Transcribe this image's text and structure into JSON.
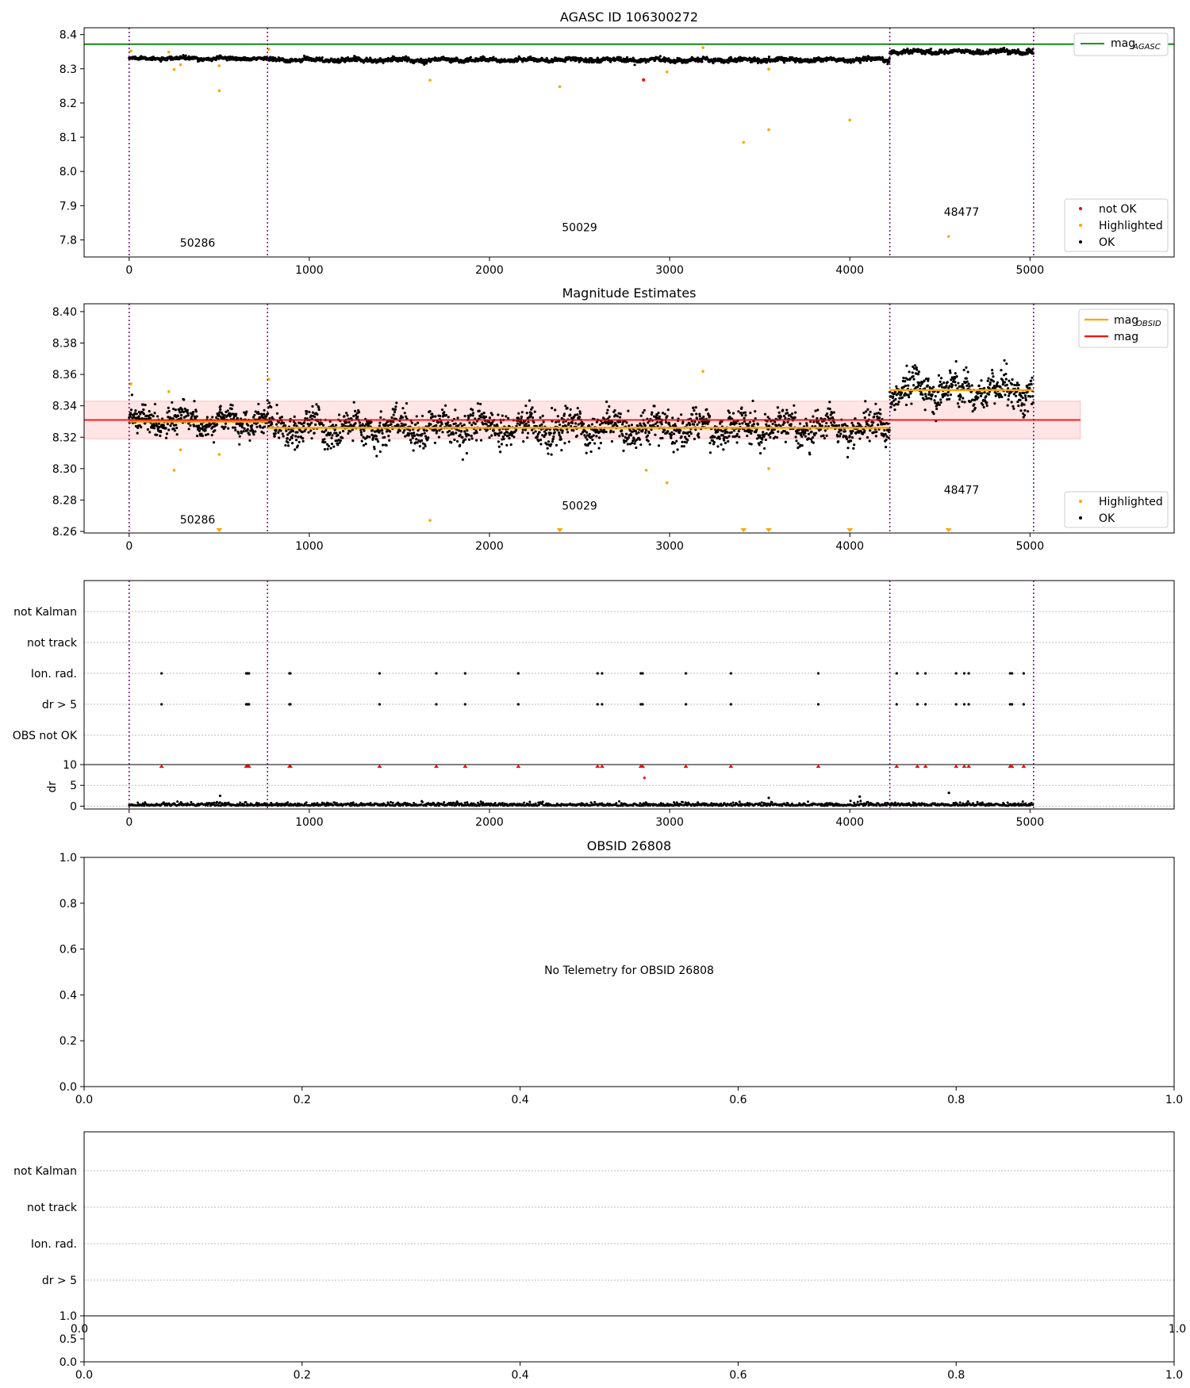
{
  "chart_data": [
    {
      "type": "scatter",
      "title": "AGASC ID 106300272",
      "xlim": [
        -250,
        5800
      ],
      "ylim": [
        7.75,
        8.42
      ],
      "xticks": [
        0,
        1000,
        2000,
        3000,
        4000,
        5000
      ],
      "yticks": [
        7.8,
        7.9,
        8.0,
        8.1,
        8.2,
        8.3,
        8.4
      ],
      "ytick_labels": [
        "7.8",
        "7.9",
        "8.0",
        "8.1",
        "8.2",
        "8.3",
        "8.4"
      ],
      "grid": false,
      "mag_agasc": 8.372,
      "obsid_boundaries": [
        0,
        768,
        4222,
        5020
      ],
      "obsid_labels": [
        {
          "text": "50286",
          "x": 380,
          "y": 7.78
        },
        {
          "text": "50029",
          "x": 2500,
          "y": 7.825
        },
        {
          "text": "48477",
          "x": 4620,
          "y": 7.87
        }
      ],
      "segments": [
        {
          "x0": 0,
          "x1": 768,
          "center": 8.33,
          "noise": 0.007
        },
        {
          "x0": 768,
          "x1": 4222,
          "center": 8.326,
          "noise": 0.009
        },
        {
          "x0": 4222,
          "x1": 5020,
          "center": 8.35,
          "noise": 0.009
        }
      ],
      "highlighted": [
        {
          "x": 10,
          "y": 8.352
        },
        {
          "x": 220,
          "y": 8.349
        },
        {
          "x": 250,
          "y": 8.298
        },
        {
          "x": 285,
          "y": 8.312
        },
        {
          "x": 500,
          "y": 8.236
        },
        {
          "x": 500,
          "y": 8.309
        },
        {
          "x": 775,
          "y": 8.357
        },
        {
          "x": 1670,
          "y": 8.267
        },
        {
          "x": 2390,
          "y": 8.248
        },
        {
          "x": 2985,
          "y": 8.291
        },
        {
          "x": 3185,
          "y": 8.362
        },
        {
          "x": 3410,
          "y": 8.085
        },
        {
          "x": 3550,
          "y": 8.122
        },
        {
          "x": 3550,
          "y": 8.299
        },
        {
          "x": 4000,
          "y": 8.15
        },
        {
          "x": 4548,
          "y": 7.81
        }
      ],
      "not_ok": [
        {
          "x": 2855,
          "y": 8.268
        }
      ],
      "legend_lines": [
        {
          "label": "mag",
          "sub": "AGASC",
          "color": "#008000"
        }
      ],
      "legend_points": [
        {
          "label": "not OK",
          "color": "#ff0000"
        },
        {
          "label": "Highlighted",
          "color": "#ffa500"
        },
        {
          "label": "OK",
          "color": "#000000"
        }
      ],
      "legend_placement": [
        "upper right",
        "lower right"
      ]
    },
    {
      "type": "scatter",
      "title": "Magnitude Estimates",
      "xlim": [
        -250,
        5800
      ],
      "ylim": [
        8.259,
        8.405
      ],
      "xticks": [
        0,
        1000,
        2000,
        3000,
        4000,
        5000
      ],
      "yticks": [
        8.26,
        8.28,
        8.3,
        8.32,
        8.34,
        8.36,
        8.38,
        8.4
      ],
      "ytick_labels": [
        "8.26",
        "8.28",
        "8.30",
        "8.32",
        "8.34",
        "8.36",
        "8.38",
        "8.40"
      ],
      "grid": false,
      "mag": 8.331,
      "mag_band": [
        8.319,
        8.343
      ],
      "mag_band_xrange": [
        -250,
        5280
      ],
      "mag_obsid": [
        {
          "x0": 0,
          "x1": 768,
          "value": 8.33
        },
        {
          "x0": 768,
          "x1": 4222,
          "value": 8.326
        },
        {
          "x0": 4222,
          "x1": 5020,
          "value": 8.35
        }
      ],
      "obsid_boundaries": [
        0,
        768,
        4222,
        5020
      ],
      "obsid_labels": [
        {
          "text": "50286",
          "x": 380,
          "y": 8.265
        },
        {
          "text": "50029",
          "x": 2500,
          "y": 8.274
        },
        {
          "text": "48477",
          "x": 4620,
          "y": 8.284
        }
      ],
      "highlighted": [
        {
          "x": 10,
          "y": 8.354
        },
        {
          "x": 220,
          "y": 8.349
        },
        {
          "x": 250,
          "y": 8.299
        },
        {
          "x": 285,
          "y": 8.312
        },
        {
          "x": 500,
          "y": 8.309
        },
        {
          "x": 775,
          "y": 8.357
        },
        {
          "x": 1670,
          "y": 8.267
        },
        {
          "x": 2870,
          "y": 8.299
        },
        {
          "x": 2985,
          "y": 8.291
        },
        {
          "x": 3185,
          "y": 8.362
        },
        {
          "x": 3550,
          "y": 8.3
        }
      ],
      "offscale_markers": [
        500,
        2390,
        3410,
        3550,
        4000,
        4548
      ],
      "legend_lines": [
        {
          "label": "mag",
          "sub": "OBSID",
          "color": "#ffa500"
        },
        {
          "label": "mag",
          "sub": "",
          "color": "#ff0000"
        }
      ],
      "legend_points": [
        {
          "label": "Highlighted",
          "color": "#ffa500"
        },
        {
          "label": "OK",
          "color": "#000000"
        }
      ],
      "legend_placement": [
        "upper right",
        "lower right"
      ]
    },
    {
      "type": "scatter",
      "title": "",
      "xlim": [
        -250,
        5800
      ],
      "xticks": [
        0,
        1000,
        2000,
        3000,
        4000,
        5000
      ],
      "flag_labels": [
        "not Kalman",
        "not track",
        "Ion. rad.",
        "dr > 5",
        "OBS not OK"
      ],
      "flag_events": [
        180,
        650,
        655,
        660,
        665,
        890,
        895,
        1390,
        1705,
        1865,
        2160,
        2600,
        2625,
        2840,
        2850,
        3090,
        3340,
        3825,
        4260,
        4375,
        4420,
        4590,
        4635,
        4660,
        4890,
        4900,
        4965
      ],
      "obsid_boundaries": [
        0,
        768,
        4222,
        5020
      ],
      "dr_ylabel": "dr",
      "dr_ylim": [
        -0.3,
        10
      ],
      "dr_yticks": [
        0,
        5,
        10
      ],
      "dr_ytick_labels": [
        "0",
        "5",
        "10"
      ],
      "dr_outliers": [
        {
          "x": 505,
          "y": 2.5
        },
        {
          "x": 2860,
          "y": 6.8
        },
        {
          "x": 4550,
          "y": 3.2
        },
        {
          "x": 4055,
          "y": 2.3
        },
        {
          "x": 3550,
          "y": 2.0
        }
      ],
      "grid": true
    },
    {
      "type": "scatter",
      "title": "OBSID 26808",
      "annotation": "No Telemetry for OBSID 26808",
      "xlim": [
        0,
        1
      ],
      "ylim": [
        0,
        1
      ],
      "xticks": [
        0,
        0.2,
        0.4,
        0.6,
        0.8,
        1
      ],
      "xtick_labels": [
        "0.0",
        "0.2",
        "0.4",
        "0.6",
        "0.8",
        "1.0"
      ],
      "yticks": [
        0,
        0.2,
        0.4,
        0.6,
        0.8,
        1
      ],
      "ytick_labels": [
        "0.0",
        "0.2",
        "0.4",
        "0.6",
        "0.8",
        "1.0"
      ],
      "grid": false
    },
    {
      "type": "scatter",
      "title": "",
      "flag_labels": [
        "not Kalman",
        "not track",
        "Ion. rad.",
        "dr > 5"
      ],
      "hidden_xtick_labels": [
        "0.0",
        "1.0"
      ],
      "xticks": [
        0,
        0.2,
        0.4,
        0.6,
        0.8,
        1
      ],
      "xtick_labels": [
        "0.0",
        "0.2",
        "0.4",
        "0.6",
        "0.8",
        "1.0"
      ],
      "small_yticks": [
        0,
        0.5,
        1
      ],
      "small_ytick_labels": [
        "0.0",
        "0.5",
        "1.0"
      ],
      "grid": true
    }
  ]
}
